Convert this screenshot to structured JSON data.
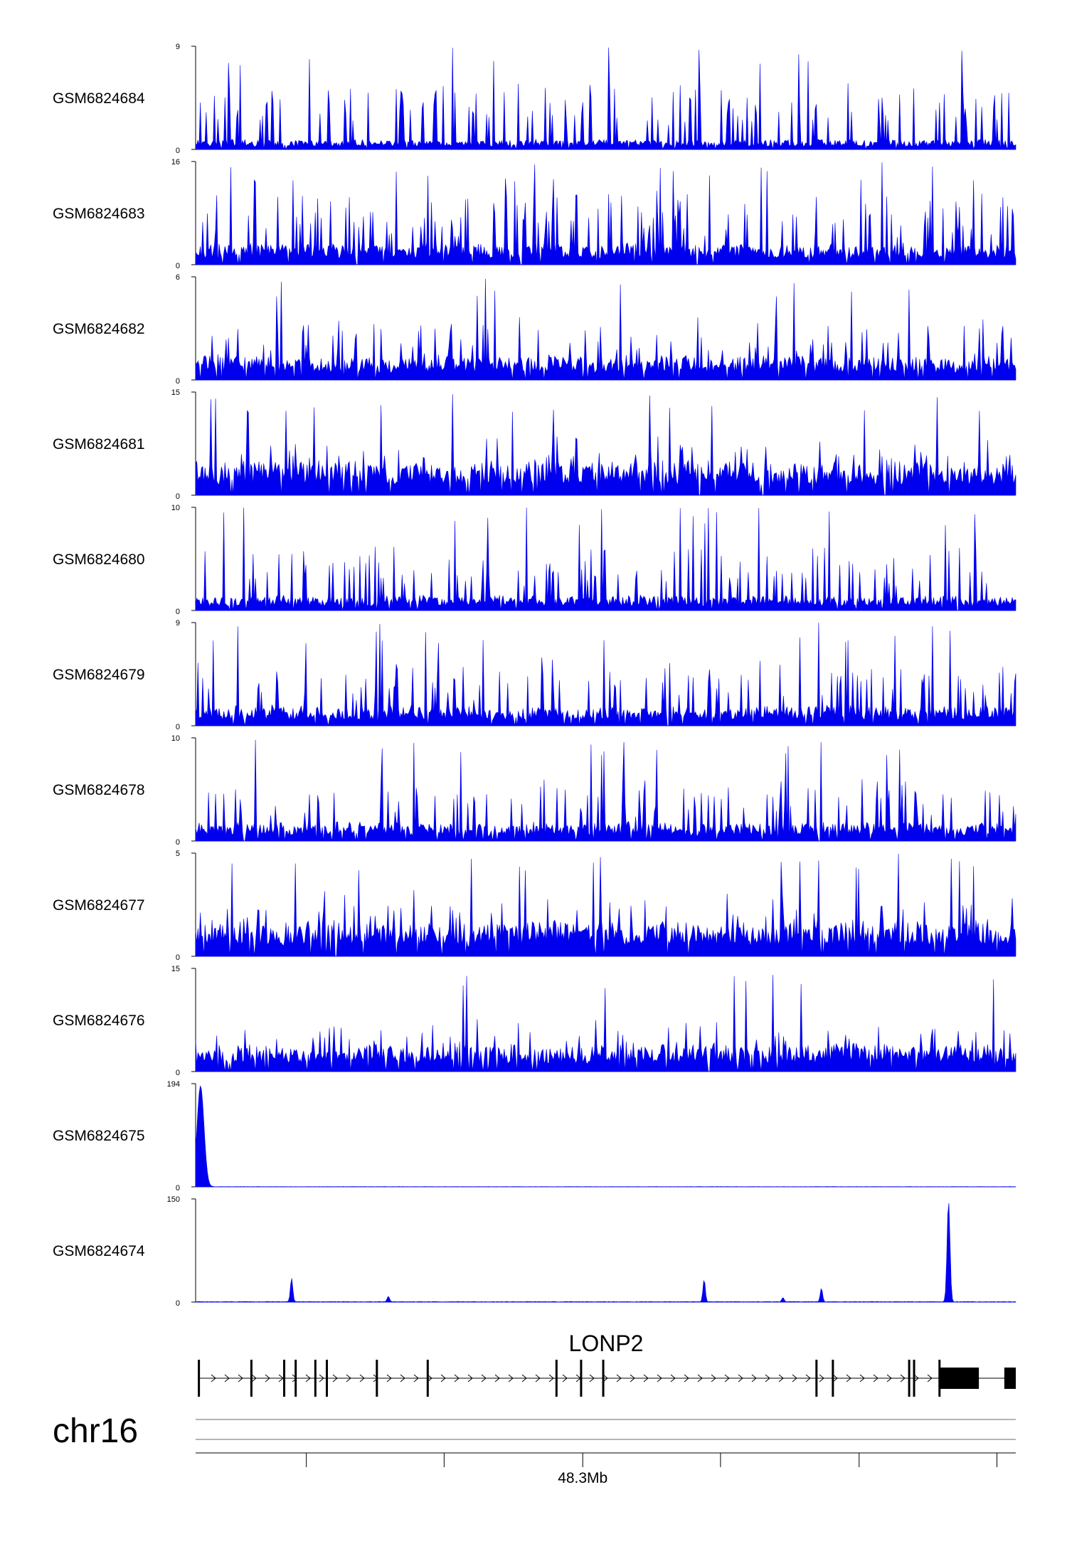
{
  "chart_data": {
    "type": "area",
    "tracks": [
      {
        "name": "GSM6824684",
        "ymax": "9",
        "ymin": "0",
        "baseline": 0.6,
        "spikiness": 0.78,
        "seed": 84
      },
      {
        "name": "GSM6824683",
        "ymax": "16",
        "ymin": "0",
        "baseline": 2.3,
        "spikiness": 0.72,
        "seed": 83
      },
      {
        "name": "GSM6824682",
        "ymax": "6",
        "ymin": "0",
        "baseline": 1.0,
        "spikiness": 0.55,
        "seed": 82
      },
      {
        "name": "GSM6824681",
        "ymax": "15",
        "ymin": "0",
        "baseline": 3.5,
        "spikiness": 0.35,
        "seed": 81
      },
      {
        "name": "GSM6824680",
        "ymax": "10",
        "ymin": "0",
        "baseline": 1.0,
        "spikiness": 0.68,
        "seed": 80
      },
      {
        "name": "GSM6824679",
        "ymax": "9",
        "ymin": "0",
        "baseline": 1.2,
        "spikiness": 0.62,
        "seed": 79
      },
      {
        "name": "GSM6824678",
        "ymax": "10",
        "ymin": "0",
        "baseline": 1.3,
        "spikiness": 0.62,
        "seed": 78
      },
      {
        "name": "GSM6824677",
        "ymax": "5",
        "ymin": "0",
        "baseline": 1.2,
        "spikiness": 0.45,
        "seed": 77
      },
      {
        "name": "GSM6824676",
        "ymax": "15",
        "ymin": "0",
        "baseline": 2.8,
        "spikiness": 0.38,
        "seed": 76
      },
      {
        "name": "GSM6824675",
        "ymax": "194",
        "ymin": "0",
        "baseline": 0.6,
        "spikiness": 0.0,
        "seed": 75,
        "peaks": [
          {
            "pos": 0.006,
            "value": 190,
            "width": 0.006
          }
        ]
      },
      {
        "name": "GSM6824674",
        "ymax": "150",
        "ymin": "0",
        "baseline": 1.0,
        "spikiness": 0.0,
        "seed": 74,
        "peaks": [
          {
            "pos": 0.117,
            "value": 35,
            "width": 0.002
          },
          {
            "pos": 0.235,
            "value": 8,
            "width": 0.002
          },
          {
            "pos": 0.62,
            "value": 33,
            "width": 0.002
          },
          {
            "pos": 0.716,
            "value": 6,
            "width": 0.002
          },
          {
            "pos": 0.763,
            "value": 20,
            "width": 0.002
          },
          {
            "pos": 0.918,
            "value": 148,
            "width": 0.0025
          }
        ]
      }
    ],
    "gene": {
      "name": "LONP2",
      "exons": [
        0.004,
        0.068,
        0.108,
        0.122,
        0.146,
        0.16,
        0.221,
        0.283,
        0.44,
        0.47,
        0.497,
        0.757,
        0.777,
        0.87,
        0.876,
        0.907
      ],
      "utr_blocks": [
        [
          0.9075,
          0.955
        ],
        [
          0.986,
          1.0
        ]
      ]
    },
    "axis": {
      "chromosome": "chr16",
      "ticks": [
        0.135,
        0.303,
        0.472,
        0.64,
        0.809,
        0.977
      ],
      "tick_label": "48.3Mb",
      "tick_label_pos": 0.472
    },
    "fill_color": "#0000ee"
  }
}
